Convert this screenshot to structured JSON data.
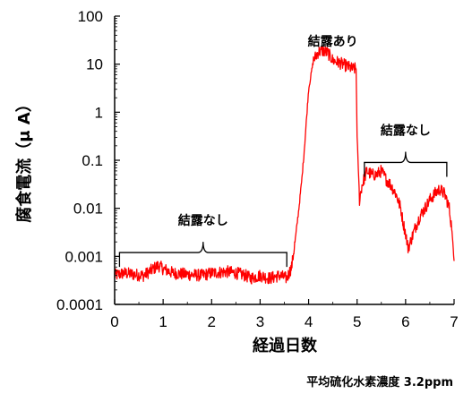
{
  "chart_data": {
    "type": "line",
    "title": "",
    "xlabel": "経過日数",
    "ylabel": "腐食電流（μ A）",
    "note": "平均硫化水素濃度 3.2ppm",
    "x_scale": "linear",
    "y_scale": "log",
    "xlim": [
      0,
      7
    ],
    "ylim": [
      0.0001,
      100
    ],
    "x_ticks": [
      0,
      1,
      2,
      3,
      4,
      5,
      6,
      7
    ],
    "y_ticks": [
      0.0001,
      0.001,
      0.01,
      0.1,
      1,
      10,
      100
    ],
    "x_tick_labels": [
      "0",
      "1",
      "2",
      "3",
      "4",
      "5",
      "6",
      "7"
    ],
    "y_tick_labels": [
      "0.0001",
      "0.001",
      "0.01",
      "0.1",
      "1",
      "10",
      "100"
    ],
    "grid": false,
    "legend": "none",
    "series": [
      {
        "color": "#ff0000",
        "points": [
          [
            0.0,
            0.0004
          ],
          [
            0.2,
            0.00045
          ],
          [
            0.4,
            0.00042
          ],
          [
            0.6,
            0.0004
          ],
          [
            0.8,
            0.00055
          ],
          [
            0.9,
            0.00065
          ],
          [
            1.0,
            0.00055
          ],
          [
            1.2,
            0.00045
          ],
          [
            1.5,
            0.00042
          ],
          [
            1.8,
            0.0004
          ],
          [
            2.0,
            0.00045
          ],
          [
            2.3,
            0.00048
          ],
          [
            2.5,
            0.00045
          ],
          [
            2.7,
            0.0004
          ],
          [
            2.8,
            0.00035
          ],
          [
            3.0,
            0.0004
          ],
          [
            3.2,
            0.00035
          ],
          [
            3.4,
            0.0004
          ],
          [
            3.55,
            0.00035
          ],
          [
            3.65,
            0.0006
          ],
          [
            3.72,
            0.002
          ],
          [
            3.8,
            0.01
          ],
          [
            3.87,
            0.05
          ],
          [
            3.93,
            0.3
          ],
          [
            4.0,
            3
          ],
          [
            4.1,
            12
          ],
          [
            4.2,
            18
          ],
          [
            4.3,
            19
          ],
          [
            4.4,
            17
          ],
          [
            4.5,
            12
          ],
          [
            4.6,
            11
          ],
          [
            4.7,
            10
          ],
          [
            4.8,
            9
          ],
          [
            4.9,
            8
          ],
          [
            4.98,
            8
          ],
          [
            5.0,
            0.3
          ],
          [
            5.05,
            0.015
          ],
          [
            5.1,
            0.03
          ],
          [
            5.2,
            0.06
          ],
          [
            5.3,
            0.05
          ],
          [
            5.4,
            0.05
          ],
          [
            5.5,
            0.06
          ],
          [
            5.6,
            0.04
          ],
          [
            5.7,
            0.03
          ],
          [
            5.8,
            0.02
          ],
          [
            5.9,
            0.01
          ],
          [
            5.95,
            0.005
          ],
          [
            6.0,
            0.003
          ],
          [
            6.05,
            0.0015
          ],
          [
            6.1,
            0.002
          ],
          [
            6.2,
            0.004
          ],
          [
            6.3,
            0.007
          ],
          [
            6.4,
            0.01
          ],
          [
            6.5,
            0.015
          ],
          [
            6.6,
            0.02
          ],
          [
            6.7,
            0.025
          ],
          [
            6.8,
            0.02
          ],
          [
            6.85,
            0.015
          ],
          [
            6.9,
            0.01
          ],
          [
            6.95,
            0.004
          ],
          [
            7.0,
            0.0008
          ]
        ]
      }
    ],
    "annotations": [
      {
        "text": "結露なし",
        "x_start": 0.1,
        "x_end": 3.55,
        "y": 0.0012
      },
      {
        "text": "結露あり",
        "x": 4.5,
        "y": 30
      },
      {
        "text": "結露なし",
        "x_start": 5.15,
        "x_end": 6.85,
        "y": 0.09
      }
    ]
  }
}
